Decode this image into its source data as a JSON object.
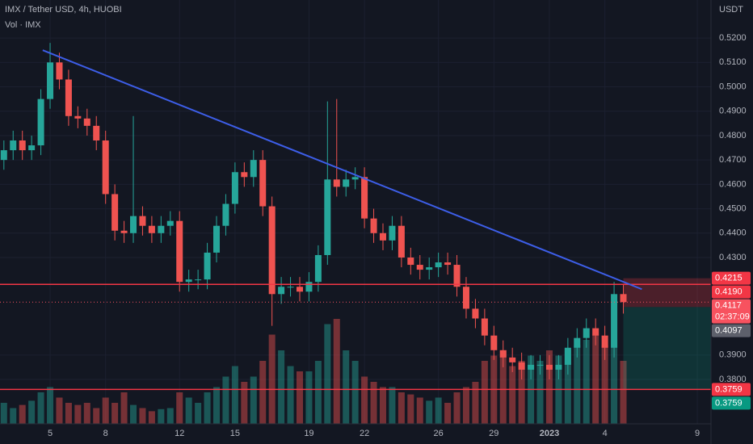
{
  "chart_data": {
    "type": "candlestick",
    "title": "IMX / Tether USD, 4h, HUOBI",
    "subtitle": "Vol · IMX",
    "y_axis_label": "USDT",
    "up_color": "#26a69a",
    "down_color": "#ef5350",
    "xlim": [
      2.29,
      40.74
    ],
    "ylim": [
      0.3618,
      0.5356
    ],
    "xticks": [
      5,
      8,
      12,
      15,
      19,
      22,
      26,
      29,
      {
        "value": 32,
        "label": "2023"
      },
      {
        "value": 35,
        "label": "4"
      },
      {
        "value": 40,
        "label": "9"
      }
    ],
    "yticks": [
      {
        "value": 0.52,
        "label": "0.5200"
      },
      {
        "value": 0.51,
        "label": "0.5100"
      },
      {
        "value": 0.5,
        "label": "0.5000"
      },
      {
        "value": 0.49,
        "label": "0.4900"
      },
      {
        "value": 0.48,
        "label": "0.4800"
      },
      {
        "value": 0.47,
        "label": "0.4700"
      },
      {
        "value": 0.46,
        "label": "0.4600"
      },
      {
        "value": 0.45,
        "label": "0.4500"
      },
      {
        "value": 0.44,
        "label": "0.4400"
      },
      {
        "value": 0.43,
        "label": "0.4300"
      },
      {
        "value": 0.39,
        "label": "0.3900"
      },
      {
        "value": 0.38,
        "label": "0.3800"
      }
    ],
    "grid": true,
    "x": [
      2.5,
      3,
      3.5,
      4,
      4.5,
      5,
      5.5,
      6,
      6.5,
      7,
      7.5,
      8,
      8.5,
      9,
      9.5,
      10,
      10.5,
      11,
      11.5,
      12,
      12.5,
      13,
      13.5,
      14,
      14.5,
      15,
      15.5,
      16,
      16.5,
      17,
      17.5,
      18,
      18.5,
      19,
      19.5,
      20,
      20.5,
      21,
      21.5,
      22,
      22.5,
      23,
      23.5,
      24,
      24.5,
      25,
      25.5,
      26,
      26.5,
      27,
      27.5,
      28,
      28.5,
      29,
      29.5,
      30,
      30.5,
      31,
      31.5,
      32,
      32.5,
      33,
      33.5,
      34,
      34.5,
      35,
      35.5,
      36
    ],
    "open": [
      0.47,
      0.474,
      0.478,
      0.474,
      0.476,
      0.495,
      0.51,
      0.503,
      0.488,
      0.487,
      0.484,
      0.478,
      0.456,
      0.441,
      0.44,
      0.447,
      0.443,
      0.44,
      0.443,
      0.445,
      0.42,
      0.421,
      0.421,
      0.432,
      0.443,
      0.452,
      0.465,
      0.463,
      0.47,
      0.451,
      0.415,
      0.418,
      0.418,
      0.416,
      0.42,
      0.431,
      0.462,
      0.459,
      0.462,
      0.463,
      0.446,
      0.44,
      0.437,
      0.443,
      0.43,
      0.427,
      0.425,
      0.426,
      0.428,
      0.427,
      0.418,
      0.409,
      0.405,
      0.398,
      0.392,
      0.389,
      0.387,
      0.384,
      0.386,
      0.386,
      0.384,
      0.386,
      0.393,
      0.397,
      0.401,
      0.398,
      0.393,
      0.415
    ],
    "high": [
      0.478,
      0.482,
      0.482,
      0.48,
      0.499,
      0.518,
      0.514,
      0.507,
      0.492,
      0.491,
      0.488,
      0.482,
      0.46,
      0.445,
      0.488,
      0.451,
      0.447,
      0.447,
      0.449,
      0.449,
      0.425,
      0.425,
      0.436,
      0.447,
      0.456,
      0.469,
      0.469,
      0.474,
      0.474,
      0.455,
      0.422,
      0.422,
      0.422,
      0.424,
      0.435,
      0.494,
      0.495,
      0.466,
      0.467,
      0.467,
      0.45,
      0.444,
      0.447,
      0.447,
      0.434,
      0.431,
      0.43,
      0.432,
      0.432,
      0.431,
      0.422,
      0.413,
      0.409,
      0.402,
      0.396,
      0.393,
      0.391,
      0.39,
      0.39,
      0.39,
      0.39,
      0.397,
      0.401,
      0.405,
      0.405,
      0.402,
      0.42,
      0.419
    ],
    "low": [
      0.466,
      0.47,
      0.47,
      0.47,
      0.472,
      0.491,
      0.499,
      0.484,
      0.483,
      0.48,
      0.474,
      0.452,
      0.437,
      0.436,
      0.436,
      0.439,
      0.436,
      0.436,
      0.439,
      0.416,
      0.416,
      0.417,
      0.417,
      0.428,
      0.439,
      0.448,
      0.459,
      0.459,
      0.447,
      0.402,
      0.411,
      0.414,
      0.412,
      0.412,
      0.416,
      0.427,
      0.455,
      0.455,
      0.458,
      0.442,
      0.436,
      0.433,
      0.433,
      0.426,
      0.423,
      0.421,
      0.421,
      0.422,
      0.423,
      0.414,
      0.405,
      0.401,
      0.394,
      0.388,
      0.385,
      0.383,
      0.38,
      0.38,
      0.382,
      0.38,
      0.38,
      0.382,
      0.389,
      0.393,
      0.394,
      0.388,
      0.389,
      0.407
    ],
    "close": [
      0.474,
      0.478,
      0.474,
      0.476,
      0.495,
      0.51,
      0.503,
      0.488,
      0.487,
      0.484,
      0.478,
      0.456,
      0.441,
      0.44,
      0.447,
      0.443,
      0.44,
      0.443,
      0.445,
      0.42,
      0.421,
      0.421,
      0.432,
      0.443,
      0.452,
      0.465,
      0.463,
      0.47,
      0.451,
      0.415,
      0.418,
      0.418,
      0.416,
      0.42,
      0.431,
      0.462,
      0.459,
      0.462,
      0.463,
      0.446,
      0.44,
      0.437,
      0.443,
      0.43,
      0.427,
      0.425,
      0.426,
      0.428,
      0.427,
      0.418,
      0.409,
      0.405,
      0.398,
      0.392,
      0.389,
      0.387,
      0.384,
      0.386,
      0.386,
      0.384,
      0.386,
      0.393,
      0.397,
      0.401,
      0.398,
      0.393,
      0.415,
      0.4117
    ],
    "volume": [
      20,
      15,
      18,
      22,
      30,
      35,
      25,
      20,
      18,
      20,
      15,
      25,
      20,
      30,
      18,
      15,
      12,
      14,
      15,
      30,
      25,
      20,
      30,
      35,
      45,
      55,
      40,
      45,
      60,
      85,
      70,
      55,
      50,
      50,
      60,
      95,
      100,
      70,
      60,
      45,
      40,
      35,
      35,
      30,
      28,
      25,
      22,
      25,
      20,
      30,
      35,
      40,
      60,
      65,
      70,
      55,
      60,
      65,
      60,
      70,
      65,
      70,
      75,
      80,
      85,
      75,
      80,
      60
    ],
    "volume_lim": [
      0,
      100
    ],
    "trendline": {
      "x": [
        4.6,
        37.0
      ],
      "y": [
        0.515,
        0.417
      ],
      "color": "#3d5ee8"
    },
    "hlines": [
      {
        "value": 0.419,
        "color": "#f23645"
      },
      {
        "value": 0.3759,
        "color": "#f23645"
      }
    ],
    "last_price": 0.4117,
    "position": {
      "x": 36.0,
      "stop": 0.4215,
      "entry": 0.4097,
      "target": 0.3759
    },
    "tags": [
      {
        "value": 0.4215,
        "label": "0.4215",
        "color": "#f23645"
      },
      {
        "value": 0.419,
        "label": "0.4190",
        "color": "#f23645"
      },
      {
        "value": 0.4117,
        "label": "0.4117",
        "color": "#f7525f",
        "countdown": "02:37:09"
      },
      {
        "value": 0.4097,
        "label": "0.4097",
        "color": "#5d606b"
      },
      {
        "value": 0.3759,
        "label": "0.3759",
        "color": "#f23645"
      },
      {
        "value": 0.3759,
        "label": "0.3759",
        "color": "#089981"
      }
    ]
  }
}
